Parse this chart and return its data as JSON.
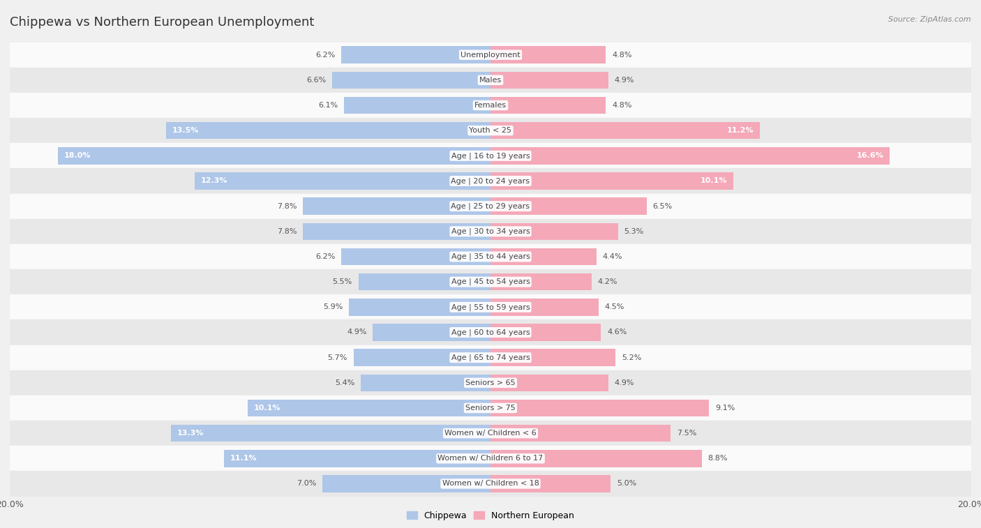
{
  "title": "Chippewa vs Northern European Unemployment",
  "source": "Source: ZipAtlas.com",
  "categories": [
    "Unemployment",
    "Males",
    "Females",
    "Youth < 25",
    "Age | 16 to 19 years",
    "Age | 20 to 24 years",
    "Age | 25 to 29 years",
    "Age | 30 to 34 years",
    "Age | 35 to 44 years",
    "Age | 45 to 54 years",
    "Age | 55 to 59 years",
    "Age | 60 to 64 years",
    "Age | 65 to 74 years",
    "Seniors > 65",
    "Seniors > 75",
    "Women w/ Children < 6",
    "Women w/ Children 6 to 17",
    "Women w/ Children < 18"
  ],
  "chippewa": [
    6.2,
    6.6,
    6.1,
    13.5,
    18.0,
    12.3,
    7.8,
    7.8,
    6.2,
    5.5,
    5.9,
    4.9,
    5.7,
    5.4,
    10.1,
    13.3,
    11.1,
    7.0
  ],
  "northern_european": [
    4.8,
    4.9,
    4.8,
    11.2,
    16.6,
    10.1,
    6.5,
    5.3,
    4.4,
    4.2,
    4.5,
    4.6,
    5.2,
    4.9,
    9.1,
    7.5,
    8.8,
    5.0
  ],
  "chippewa_color": "#aec6e8",
  "northern_european_color": "#f4a8b8",
  "background_color": "#f0f0f0",
  "row_bg_light": "#fafafa",
  "row_bg_dark": "#e8e8e8",
  "xlim": 20.0,
  "bar_height": 0.68,
  "legend_chippewa": "Chippewa",
  "legend_northern_european": "Northern European"
}
